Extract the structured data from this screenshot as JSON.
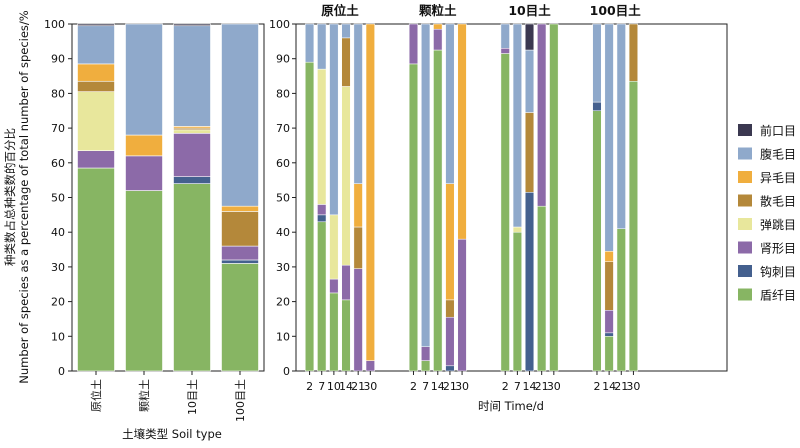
{
  "colors": {
    "前口目": "#3b3850",
    "腹毛目": "#8fa9cb",
    "异毛目": "#f0ae3e",
    "散毛目": "#b4883a",
    "弹跳目": "#e8e79c",
    "肾形目": "#8c6aa8",
    "钩刺目": "#44608e",
    "盾纤目": "#87b563"
  },
  "chart_data": [
    {
      "id": "soil-type",
      "type": "bar",
      "stacked": true,
      "xlabel": "土壤类型 Soil type",
      "ylabel": "种类数占总种类数的百分比",
      "ylabel2": "Number of species as a percentage of total number of species/%",
      "ylim": [
        0,
        100
      ],
      "yticks": [
        0,
        10,
        20,
        30,
        40,
        50,
        60,
        70,
        80,
        90,
        100
      ],
      "categories": [
        "原位土",
        "颗粒土",
        "10目土",
        "100目土"
      ],
      "series": [
        {
          "name": "盾纤目",
          "values": [
            58.5,
            52,
            54,
            31
          ]
        },
        {
          "name": "钩刺目",
          "values": [
            0,
            0,
            2,
            1
          ]
        },
        {
          "name": "肾形目",
          "values": [
            5,
            10,
            12.5,
            4
          ]
        },
        {
          "name": "弹跳目",
          "values": [
            17,
            0,
            1,
            0
          ]
        },
        {
          "name": "散毛目",
          "values": [
            3,
            0,
            0.5,
            10
          ]
        },
        {
          "name": "异毛目",
          "values": [
            5,
            6,
            0.5,
            1.5
          ]
        },
        {
          "name": "腹毛目",
          "values": [
            11,
            32,
            29,
            52.5
          ]
        },
        {
          "name": "前口目",
          "values": [
            0.5,
            0,
            0.5,
            0
          ]
        }
      ]
    },
    {
      "id": "time-series",
      "type": "bar",
      "stacked": true,
      "xlabel": "时间 Time/d",
      "ylim": [
        0,
        100
      ],
      "yticks": [
        0,
        10,
        20,
        30,
        40,
        50,
        60,
        70,
        80,
        90,
        100
      ],
      "groups": [
        {
          "title": "原位土",
          "days": [
            "2",
            "7",
            "10",
            "14",
            "21",
            "30"
          ],
          "series": [
            {
              "name": "盾纤目",
              "values": [
                89,
                43,
                22.5,
                20.5,
                0,
                0
              ]
            },
            {
              "name": "钩刺目",
              "values": [
                0,
                2,
                0,
                0,
                0,
                0
              ]
            },
            {
              "name": "肾形目",
              "values": [
                0,
                3,
                4,
                10,
                29.5,
                3
              ]
            },
            {
              "name": "弹跳目",
              "values": [
                0,
                39,
                18.5,
                51.5,
                0,
                0
              ]
            },
            {
              "name": "散毛目",
              "values": [
                0,
                0,
                0,
                14,
                12,
                0
              ]
            },
            {
              "name": "异毛目",
              "values": [
                0,
                0,
                0,
                0,
                12.5,
                97
              ]
            },
            {
              "name": "腹毛目",
              "values": [
                11,
                13,
                55,
                4,
                46,
                0
              ]
            },
            {
              "name": "前口目",
              "values": [
                0,
                0,
                0,
                0,
                0,
                0
              ]
            }
          ]
        },
        {
          "title": "颗粒土",
          "days": [
            "2",
            "7",
            "14",
            "21",
            "30"
          ],
          "series": [
            {
              "name": "盾纤目",
              "values": [
                88.5,
                3,
                92.5,
                0,
                0
              ]
            },
            {
              "name": "钩刺目",
              "values": [
                0,
                0,
                0,
                1.5,
                0
              ]
            },
            {
              "name": "肾形目",
              "values": [
                11.5,
                4,
                6,
                14,
                38
              ]
            },
            {
              "name": "弹跳目",
              "values": [
                0,
                0,
                0,
                0,
                0
              ]
            },
            {
              "name": "散毛目",
              "values": [
                0,
                0,
                0,
                5,
                0
              ]
            },
            {
              "name": "异毛目",
              "values": [
                0,
                0,
                1.5,
                33.5,
                62
              ]
            },
            {
              "name": "腹毛目",
              "values": [
                0,
                93,
                0,
                46,
                0
              ]
            },
            {
              "name": "前口目",
              "values": [
                0,
                0,
                0,
                0,
                0
              ]
            }
          ]
        },
        {
          "title": "10目土",
          "days": [
            "2",
            "7",
            "14",
            "21",
            "30"
          ],
          "series": [
            {
              "name": "盾纤目",
              "values": [
                91.5,
                40,
                0,
                47.5,
                100
              ]
            },
            {
              "name": "钩刺目",
              "values": [
                0,
                0,
                51.5,
                0,
                0
              ]
            },
            {
              "name": "肾形目",
              "values": [
                1.5,
                0,
                0,
                52.5,
                0
              ]
            },
            {
              "name": "弹跳目",
              "values": [
                0,
                1.5,
                0,
                0,
                0
              ]
            },
            {
              "name": "散毛目",
              "values": [
                0,
                0,
                23,
                0,
                0
              ]
            },
            {
              "name": "异毛目",
              "values": [
                0,
                0,
                0,
                0,
                0
              ]
            },
            {
              "name": "腹毛目",
              "values": [
                7,
                58.5,
                18,
                0,
                0
              ]
            },
            {
              "name": "前口目",
              "values": [
                0,
                0,
                7.5,
                0,
                0
              ]
            }
          ]
        },
        {
          "title": "100目土",
          "days": [
            "2",
            "14",
            "21",
            "30"
          ],
          "series": [
            {
              "name": "盾纤目",
              "values": [
                75,
                10,
                41,
                83.5
              ]
            },
            {
              "name": "钩刺目",
              "values": [
                2.5,
                1,
                0,
                0
              ]
            },
            {
              "name": "肾形目",
              "values": [
                0,
                6.5,
                0,
                0
              ]
            },
            {
              "name": "弹跳目",
              "values": [
                0,
                0,
                0,
                0
              ]
            },
            {
              "name": "散毛目",
              "values": [
                0,
                14,
                0,
                16.5
              ]
            },
            {
              "name": "异毛目",
              "values": [
                0,
                3,
                0,
                0
              ]
            },
            {
              "name": "腹毛目",
              "values": [
                22.5,
                65.5,
                59,
                0
              ]
            },
            {
              "name": "前口目",
              "values": [
                0,
                0,
                0,
                0
              ]
            }
          ]
        }
      ]
    }
  ],
  "legend": {
    "placement": "right",
    "items": [
      "前口目",
      "腹毛目",
      "异毛目",
      "散毛目",
      "弹跳目",
      "肾形目",
      "钩刺目",
      "盾纤目"
    ]
  }
}
